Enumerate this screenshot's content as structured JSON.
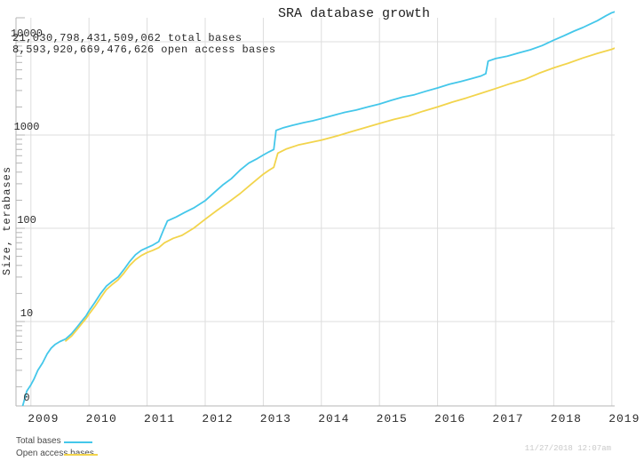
{
  "title": "SRA database growth",
  "annotations": {
    "total": "21,030,798,431,509,062 total bases",
    "open": "8,593,920,669,476,626 open access bases"
  },
  "timestamp": "11/27/2018 12:07am",
  "legend": [
    {
      "label": "Total bases",
      "color": "#44c7ea"
    },
    {
      "label": "Open access bases",
      "color": "#f2d44c"
    }
  ],
  "colors": {
    "total_line": "#44c7ea",
    "open_line": "#f2d44c",
    "grid": "#dddddd",
    "axis": "#b5b5b5",
    "text": "#2a2a2a"
  },
  "chart_data": {
    "type": "line",
    "title": "SRA database growth",
    "xlabel": "",
    "ylabel": "Size, terabases",
    "y_scale": "log10",
    "ylim_terabases": [
      1,
      17000
    ],
    "xlim_years": [
      2008.74,
      2019.05
    ],
    "x_ticks": [
      "2009",
      "2010",
      "2011",
      "2012",
      "2013",
      "2014",
      "2015",
      "2016",
      "2017",
      "2018",
      "2019"
    ],
    "x_tick_years": [
      2009,
      2010,
      2011,
      2012,
      2013,
      2014,
      2015,
      2016,
      2017,
      2018,
      2019
    ],
    "y_ticks": [
      "0",
      "10",
      "100",
      "1000",
      "10000"
    ],
    "y_tick_values": [
      1,
      10,
      100,
      1000,
      10000
    ],
    "grid": true,
    "legend_position": "bottom-left",
    "series": [
      {
        "name": "Total bases",
        "color": "#44c7ea",
        "points": [
          [
            2008.86,
            1.25
          ],
          [
            2008.93,
            1.8
          ],
          [
            2009.0,
            2.1
          ],
          [
            2009.05,
            2.4
          ],
          [
            2009.12,
            3.0
          ],
          [
            2009.2,
            3.6
          ],
          [
            2009.28,
            4.5
          ],
          [
            2009.35,
            5.2
          ],
          [
            2009.42,
            5.7
          ],
          [
            2009.5,
            6.1
          ],
          [
            2009.6,
            6.5
          ],
          [
            2009.7,
            7.4
          ],
          [
            2009.8,
            8.8
          ],
          [
            2009.88,
            10.2
          ],
          [
            2009.95,
            11.5
          ],
          [
            2010.0,
            13.0
          ],
          [
            2010.1,
            16
          ],
          [
            2010.2,
            20
          ],
          [
            2010.3,
            24
          ],
          [
            2010.4,
            27
          ],
          [
            2010.5,
            30
          ],
          [
            2010.6,
            36
          ],
          [
            2010.7,
            44
          ],
          [
            2010.8,
            52
          ],
          [
            2010.9,
            58
          ],
          [
            2011.0,
            62
          ],
          [
            2011.1,
            66
          ],
          [
            2011.2,
            72
          ],
          [
            2011.28,
            95
          ],
          [
            2011.35,
            120
          ],
          [
            2011.5,
            132
          ],
          [
            2011.65,
            148
          ],
          [
            2011.8,
            165
          ],
          [
            2012.0,
            198
          ],
          [
            2012.15,
            240
          ],
          [
            2012.3,
            290
          ],
          [
            2012.45,
            340
          ],
          [
            2012.6,
            420
          ],
          [
            2012.75,
            500
          ],
          [
            2012.9,
            560
          ],
          [
            2013.0,
            610
          ],
          [
            2013.1,
            660
          ],
          [
            2013.18,
            700
          ],
          [
            2013.22,
            1120
          ],
          [
            2013.35,
            1200
          ],
          [
            2013.5,
            1270
          ],
          [
            2013.7,
            1360
          ],
          [
            2013.85,
            1420
          ],
          [
            2014.0,
            1500
          ],
          [
            2014.2,
            1620
          ],
          [
            2014.4,
            1750
          ],
          [
            2014.6,
            1850
          ],
          [
            2014.8,
            2000
          ],
          [
            2015.0,
            2150
          ],
          [
            2015.2,
            2350
          ],
          [
            2015.4,
            2550
          ],
          [
            2015.6,
            2700
          ],
          [
            2015.8,
            2950
          ],
          [
            2016.0,
            3200
          ],
          [
            2016.2,
            3500
          ],
          [
            2016.4,
            3750
          ],
          [
            2016.6,
            4050
          ],
          [
            2016.75,
            4300
          ],
          [
            2016.83,
            4550
          ],
          [
            2016.87,
            6200
          ],
          [
            2017.0,
            6600
          ],
          [
            2017.2,
            7000
          ],
          [
            2017.4,
            7600
          ],
          [
            2017.6,
            8200
          ],
          [
            2017.8,
            9100
          ],
          [
            2018.0,
            10400
          ],
          [
            2018.2,
            11800
          ],
          [
            2018.35,
            13000
          ],
          [
            2018.5,
            14200
          ],
          [
            2018.6,
            15200
          ],
          [
            2018.75,
            16800
          ],
          [
            2018.9,
            19000
          ],
          [
            2019.0,
            20500
          ],
          [
            2019.06,
            21031
          ]
        ]
      },
      {
        "name": "Open access bases",
        "color": "#f2d44c",
        "points": [
          [
            2009.6,
            6.2
          ],
          [
            2009.7,
            7.0
          ],
          [
            2009.8,
            8.3
          ],
          [
            2009.88,
            9.6
          ],
          [
            2009.95,
            10.8
          ],
          [
            2010.0,
            12.0
          ],
          [
            2010.1,
            14.5
          ],
          [
            2010.2,
            18
          ],
          [
            2010.3,
            22
          ],
          [
            2010.4,
            25
          ],
          [
            2010.5,
            28
          ],
          [
            2010.6,
            33
          ],
          [
            2010.7,
            40
          ],
          [
            2010.8,
            46
          ],
          [
            2010.9,
            51
          ],
          [
            2011.0,
            55
          ],
          [
            2011.1,
            58
          ],
          [
            2011.2,
            62
          ],
          [
            2011.3,
            70
          ],
          [
            2011.45,
            78
          ],
          [
            2011.6,
            84
          ],
          [
            2011.8,
            100
          ],
          [
            2012.0,
            125
          ],
          [
            2012.2,
            155
          ],
          [
            2012.4,
            190
          ],
          [
            2012.6,
            235
          ],
          [
            2012.8,
            300
          ],
          [
            2013.0,
            380
          ],
          [
            2013.1,
            420
          ],
          [
            2013.18,
            450
          ],
          [
            2013.25,
            640
          ],
          [
            2013.4,
            710
          ],
          [
            2013.6,
            780
          ],
          [
            2013.8,
            830
          ],
          [
            2014.0,
            880
          ],
          [
            2014.2,
            950
          ],
          [
            2014.35,
            1010
          ],
          [
            2014.5,
            1080
          ],
          [
            2014.75,
            1200
          ],
          [
            2015.0,
            1330
          ],
          [
            2015.25,
            1470
          ],
          [
            2015.5,
            1600
          ],
          [
            2015.75,
            1800
          ],
          [
            2016.0,
            2000
          ],
          [
            2016.25,
            2250
          ],
          [
            2016.5,
            2500
          ],
          [
            2016.75,
            2800
          ],
          [
            2017.0,
            3150
          ],
          [
            2017.25,
            3550
          ],
          [
            2017.5,
            3950
          ],
          [
            2017.75,
            4600
          ],
          [
            2018.0,
            5250
          ],
          [
            2018.25,
            5900
          ],
          [
            2018.5,
            6700
          ],
          [
            2018.75,
            7500
          ],
          [
            2019.0,
            8300
          ],
          [
            2019.06,
            8594
          ]
        ]
      }
    ]
  }
}
